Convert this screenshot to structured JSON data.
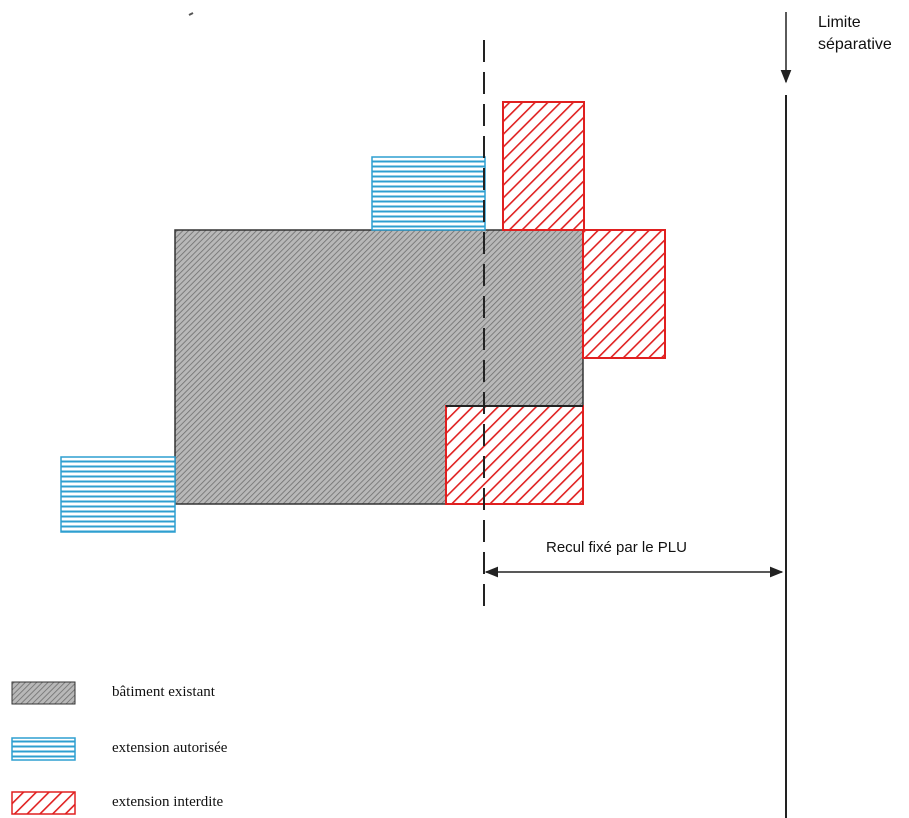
{
  "labels": {
    "limite_line1": "Limite",
    "limite_line2": "séparative",
    "recul": "Recul fixé par le PLU"
  },
  "legend": [
    {
      "key": "existing",
      "label": "bâtiment existant"
    },
    {
      "key": "allowed",
      "label": "extension autorisée"
    },
    {
      "key": "forbidden",
      "label": "extension interdite"
    }
  ],
  "colors": {
    "existing_fill": "#a7a7a7",
    "allowed_stripe": "#2e9fd0",
    "forbidden_stripe": "#e02020",
    "line": "#222222"
  }
}
